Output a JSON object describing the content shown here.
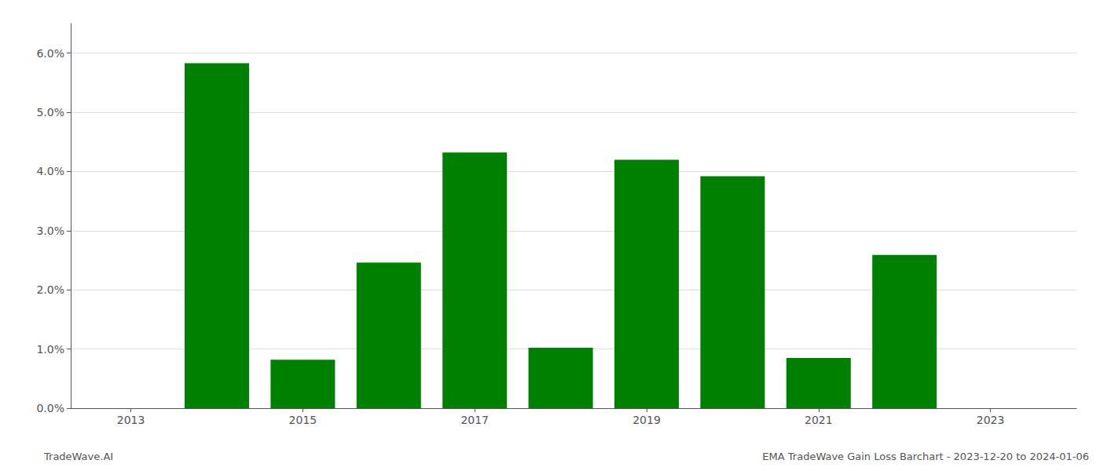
{
  "chart_data": {
    "type": "bar",
    "x": [
      2014,
      2015,
      2016,
      2017,
      2018,
      2019,
      2020,
      2021,
      2022
    ],
    "values": [
      0.0583,
      0.0082,
      0.0246,
      0.0432,
      0.0102,
      0.042,
      0.0392,
      0.0085,
      0.0259
    ],
    "color": "#008000",
    "xlim": [
      2012.3,
      2024.0
    ],
    "xticks": [
      2013,
      2015,
      2017,
      2019,
      2021,
      2023
    ],
    "ylim": [
      0.0,
      0.065
    ],
    "yticks": [
      {
        "value": 0.0,
        "label": "0.0%"
      },
      {
        "value": 0.01,
        "label": "1.0%"
      },
      {
        "value": 0.02,
        "label": "2.0%"
      },
      {
        "value": 0.03,
        "label": "3.0%"
      },
      {
        "value": 0.04,
        "label": "4.0%"
      },
      {
        "value": 0.05,
        "label": "5.0%"
      },
      {
        "value": 0.06,
        "label": "6.0%"
      }
    ],
    "grid": true,
    "annotations": [
      "TradeWave.AI",
      "EMA TradeWave Gain Loss Barchart - 2023-12-20 to 2024-01-06"
    ]
  }
}
